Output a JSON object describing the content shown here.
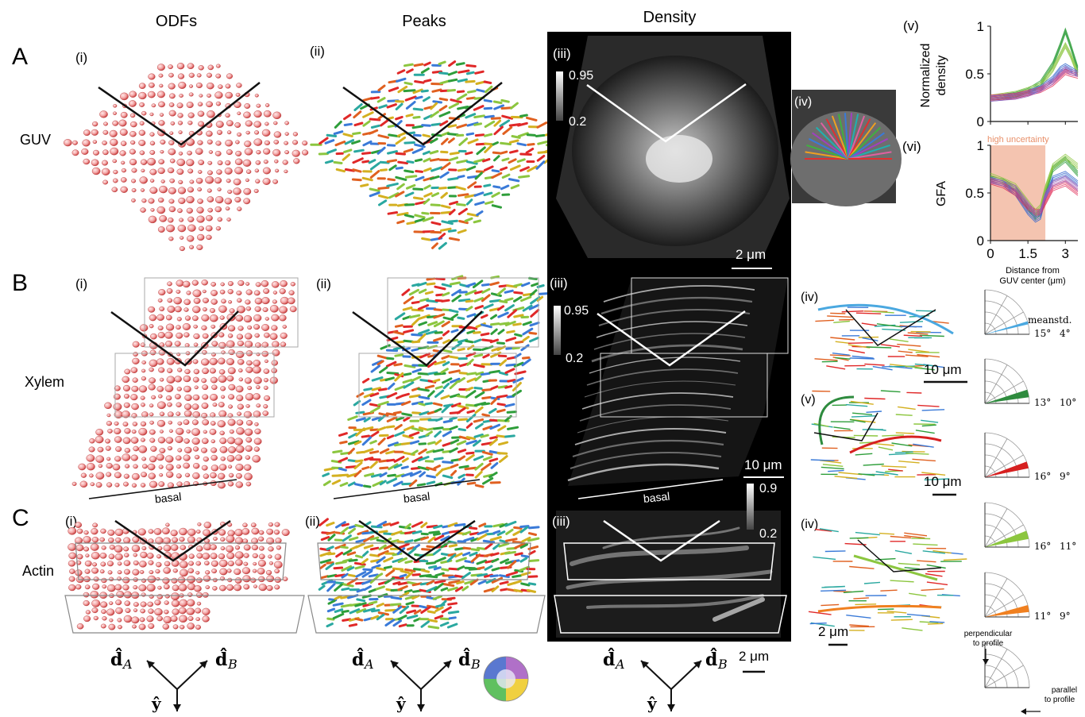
{
  "columns": {
    "odfs": "ODFs",
    "peaks": "Peaks",
    "density": "Density"
  },
  "rows": {
    "A": {
      "letter": "A",
      "name": "GUV"
    },
    "B": {
      "letter": "B",
      "name": "Xylem"
    },
    "C": {
      "letter": "C",
      "name": "Actin"
    }
  },
  "panels": {
    "i": "(i)",
    "ii": "(ii)",
    "iii": "(iii)",
    "iv": "(iv)",
    "v": "(v)",
    "vi": "(vi)"
  },
  "density_scale": {
    "A": {
      "max": "0.95",
      "min": "0.2"
    },
    "B": {
      "max": "0.95",
      "min": "0.2"
    },
    "C": {
      "max": "0.9",
      "min": "0.2"
    }
  },
  "scale_bars": {
    "A_density": "2 μm",
    "B_density": "10 μm",
    "B_iv": "10 μm",
    "B_v": "10 μm",
    "C_iv": "2 μm",
    "C_density": "2 μm"
  },
  "basal": "basal",
  "axes": {
    "dA": "d̂",
    "dA_sub": "A",
    "dB": "d̂",
    "dB_sub": "B",
    "y": "ŷ"
  },
  "polar": {
    "header_mean": "mean",
    "header_std": "std.",
    "items": [
      {
        "mean": "15°",
        "std": "4°",
        "color": "#4aa8e0"
      },
      {
        "mean": "13°",
        "std": "10°",
        "color": "#2e8b3e"
      },
      {
        "mean": "16°",
        "std": "9°",
        "color": "#d62020"
      },
      {
        "mean": "16°",
        "std": "11°",
        "color": "#8cc63f"
      },
      {
        "mean": "11°",
        "std": "9°",
        "color": "#f08020"
      }
    ],
    "legend_perp_1": "perpendicular",
    "legend_perp_2": "to profile",
    "legend_par_1": "parallel",
    "legend_par_2": "to profile"
  },
  "plot_v": {
    "ylabel_1": "Normalized",
    "ylabel_2": "density",
    "yticks": [
      "1",
      "0.5",
      "0"
    ]
  },
  "plot_vi": {
    "ylabel": "GFA",
    "yticks": [
      "1",
      "0.5",
      "0"
    ],
    "xticks": [
      "0",
      "1.5",
      "3"
    ],
    "xlabel_1": "Distance from",
    "xlabel_2": "GUV center (μm)",
    "shade_label": "high uncertainty"
  },
  "chart_data": [
    {
      "type": "line",
      "panel": "A(v)",
      "xlabel": "",
      "ylabel": "Normalized density",
      "xlim": [
        0,
        3.5
      ],
      "ylim": [
        0,
        1
      ],
      "x": [
        0,
        0.5,
        1.0,
        1.5,
        2.0,
        2.5,
        2.8,
        3.0,
        3.2,
        3.5
      ],
      "series": [
        {
          "color": "#2e9e3a",
          "values": [
            0.25,
            0.26,
            0.28,
            0.32,
            0.4,
            0.6,
            0.8,
            0.95,
            0.8,
            0.55
          ]
        },
        {
          "color": "#8cc63f",
          "values": [
            0.25,
            0.27,
            0.29,
            0.33,
            0.38,
            0.55,
            0.7,
            0.8,
            0.7,
            0.5
          ]
        },
        {
          "color": "#3366cc",
          "values": [
            0.24,
            0.25,
            0.27,
            0.3,
            0.35,
            0.45,
            0.55,
            0.58,
            0.55,
            0.5
          ]
        },
        {
          "color": "#e0305a",
          "values": [
            0.25,
            0.26,
            0.27,
            0.3,
            0.33,
            0.4,
            0.47,
            0.52,
            0.5,
            0.48
          ]
        },
        {
          "color": "#9b59b6",
          "values": [
            0.24,
            0.25,
            0.26,
            0.29,
            0.34,
            0.42,
            0.5,
            0.55,
            0.52,
            0.5
          ]
        }
      ]
    },
    {
      "type": "line",
      "panel": "A(vi)",
      "xlabel": "Distance from GUV center (μm)",
      "ylabel": "GFA",
      "xlim": [
        0,
        3.5
      ],
      "ylim": [
        0,
        1
      ],
      "shaded_region": [
        0,
        2.2
      ],
      "x": [
        0,
        0.5,
        1.0,
        1.5,
        1.8,
        2.0,
        2.2,
        2.5,
        3.0,
        3.5
      ],
      "series": [
        {
          "color": "#2e9e3a",
          "values": [
            0.65,
            0.62,
            0.55,
            0.35,
            0.25,
            0.3,
            0.5,
            0.75,
            0.85,
            0.7
          ]
        },
        {
          "color": "#8cc63f",
          "values": [
            0.68,
            0.63,
            0.57,
            0.4,
            0.3,
            0.35,
            0.55,
            0.78,
            0.88,
            0.78
          ]
        },
        {
          "color": "#3366cc",
          "values": [
            0.64,
            0.6,
            0.5,
            0.3,
            0.22,
            0.25,
            0.45,
            0.65,
            0.7,
            0.6
          ]
        },
        {
          "color": "#e0305a",
          "values": [
            0.62,
            0.58,
            0.5,
            0.35,
            0.3,
            0.3,
            0.4,
            0.55,
            0.6,
            0.5
          ]
        },
        {
          "color": "#9b59b6",
          "values": [
            0.63,
            0.6,
            0.55,
            0.38,
            0.28,
            0.3,
            0.48,
            0.6,
            0.65,
            0.55
          ]
        }
      ]
    }
  ]
}
